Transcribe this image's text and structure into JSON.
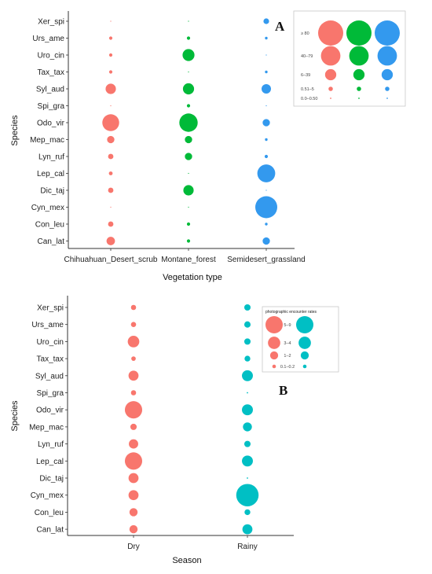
{
  "chart_data": [
    {
      "type": "scatter",
      "panel_label": "A",
      "xlabel": "Vegetation type",
      "ylabel": "Species",
      "categories": [
        "Chihuahuan_Desert_scrub",
        "Montane_forest",
        "Semidesert_grassland"
      ],
      "species": [
        "Xer_spi",
        "Urs_ame",
        "Uro_cin",
        "Tax_tax",
        "Syl_aud",
        "Spi_gra",
        "Odo_vir",
        "Mep_mac",
        "Lyn_ruf",
        "Lep_cal",
        "Dic_taj",
        "Cyn_mex",
        "Con_leu",
        "Can_lat"
      ],
      "series": [
        {
          "category": "Chihuahuan_Desert_scrub",
          "color": "#F8766D",
          "values": [
            0,
            3,
            3,
            3,
            30,
            0,
            80,
            15,
            8,
            4,
            8,
            0,
            8,
            20
          ]
        },
        {
          "category": "Montane_forest",
          "color": "#00BA38",
          "values": [
            0,
            3,
            40,
            0,
            35,
            3,
            95,
            15,
            15,
            0,
            30,
            0,
            3,
            3
          ]
        },
        {
          "category": "Semidesert_grassland",
          "color": "#3399EE",
          "values": [
            9,
            2,
            0,
            2,
            25,
            0,
            15,
            2,
            3,
            90,
            0,
            150,
            2,
            15
          ]
        }
      ],
      "legend": {
        "position": "top-right",
        "labels": [
          "≥ 80",
          "40–79",
          "6–39",
          "0.51–5",
          "0.0–0.50"
        ],
        "values": [
          100,
          60,
          20,
          3,
          0.3
        ]
      }
    },
    {
      "type": "scatter",
      "panel_label": "B",
      "xlabel": "Season",
      "ylabel": "Species",
      "categories": [
        "Dry",
        "Rainy"
      ],
      "species": [
        "Xer_spi",
        "Urs_ame",
        "Uro_cin",
        "Tax_tax",
        "Syl_aud",
        "Spi_gra",
        "Odo_vir",
        "Mep_mac",
        "Lyn_ruf",
        "Lep_cal",
        "Dic_taj",
        "Cyn_mex",
        "Con_leu",
        "Can_lat"
      ],
      "series": [
        {
          "category": "Dry",
          "color": "#F8766D",
          "values": [
            0.4,
            0.4,
            2,
            0.3,
            1.5,
            0.4,
            4.5,
            0.6,
            1.3,
            4.5,
            1.5,
            1.5,
            1,
            1
          ]
        },
        {
          "category": "Rainy",
          "color": "#00BFC4",
          "values": [
            0.6,
            0.6,
            0.6,
            0.5,
            1.8,
            0.02,
            1.8,
            1.2,
            0.6,
            1.8,
            0.02,
            7.5,
            0.5,
            1.5
          ]
        }
      ],
      "legend": {
        "position": "top-right",
        "title": "photographic encounter rates",
        "labels": [
          "5–9",
          "3–4",
          "1–2",
          "0.1–0.2"
        ],
        "values": [
          7,
          3.5,
          1.5,
          0.3
        ]
      }
    }
  ]
}
